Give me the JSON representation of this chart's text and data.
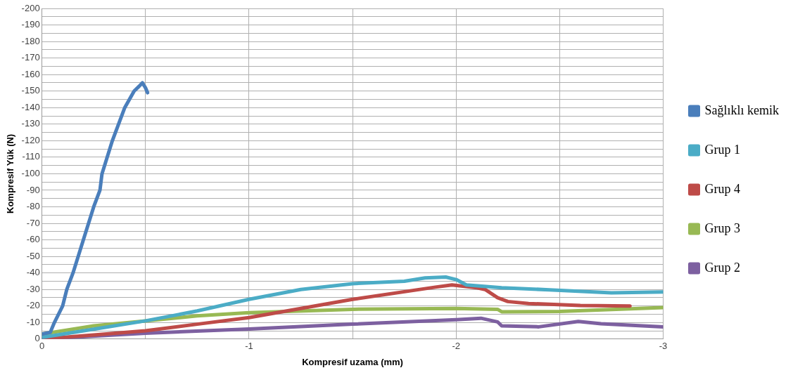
{
  "chart_data": {
    "type": "line",
    "xlabel": "Kompresif uzama (mm)",
    "ylabel": "Kompresif Yük (N)",
    "xlim": [
      0,
      -3
    ],
    "ylim": [
      0,
      -200
    ],
    "xticks": [
      0,
      {
        "value": -0.5,
        "label": null
      },
      -1,
      {
        "value": -1.5,
        "label": null
      },
      -2,
      {
        "value": -2.5,
        "label": null
      },
      -3
    ],
    "yticks": [
      0,
      {
        "value": -5,
        "label": null
      },
      -10,
      {
        "value": -15,
        "label": null
      },
      -20,
      {
        "value": -25,
        "label": null
      },
      -30,
      {
        "value": -35,
        "label": null
      },
      -40,
      {
        "value": -45,
        "label": null
      },
      -50,
      {
        "value": -55,
        "label": null
      },
      -60,
      {
        "value": -65,
        "label": null
      },
      -70,
      {
        "value": -75,
        "label": null
      },
      -80,
      {
        "value": -85,
        "label": null
      },
      -90,
      {
        "value": -95,
        "label": null
      },
      -100,
      {
        "value": -105,
        "label": null
      },
      -110,
      {
        "value": -115,
        "label": null
      },
      -120,
      {
        "value": -125,
        "label": null
      },
      -130,
      {
        "value": -135,
        "label": null
      },
      -140,
      {
        "value": -145,
        "label": null
      },
      -150,
      {
        "value": -155,
        "label": null
      },
      -160,
      {
        "value": -165,
        "label": null
      },
      -170,
      {
        "value": -175,
        "label": null
      },
      -180,
      {
        "value": -185,
        "label": null
      },
      -190,
      {
        "value": -195,
        "label": null
      },
      -200
    ],
    "grid": true,
    "legend": "right",
    "marker": "none",
    "line_style": "solid",
    "series": [
      {
        "name": "Sağlıklı kemik",
        "color": "#4a7ebb",
        "x": [
          0,
          -0.04,
          -0.06,
          -0.1,
          -0.12,
          -0.15,
          -0.2,
          -0.25,
          -0.28,
          -0.29,
          -0.34,
          -0.4,
          -0.445,
          -0.47,
          -0.485,
          -0.5,
          -0.51
        ],
        "values": [
          -3,
          -4,
          -10,
          -20,
          -30,
          -40,
          -60,
          -80,
          -90,
          -100,
          -120,
          -140,
          -150,
          -153,
          -155,
          -152,
          -149
        ]
      },
      {
        "name": "Grup 1",
        "color": "#4bacc6",
        "x": [
          0,
          -0.25,
          -0.5,
          -0.75,
          -1,
          -1.25,
          -1.5,
          -1.75,
          -1.85,
          -1.95,
          -2,
          -2.05,
          -2.22,
          -2.45,
          -2.75,
          -3
        ],
        "values": [
          -1,
          -6,
          -11,
          -17,
          -24,
          -30,
          -33.5,
          -35,
          -37,
          -37.5,
          -36,
          -32.7,
          -31,
          -29.8,
          -28,
          -28.5
        ]
      },
      {
        "name": "Grup 4",
        "color": "#be4b48",
        "x": [
          0,
          -0.25,
          -0.5,
          -0.75,
          -1,
          -1.5,
          -1.9,
          -1.98,
          -2.1,
          -2.14,
          -2.2,
          -2.25,
          -2.35,
          -2.6,
          -2.84
        ],
        "values": [
          0,
          -2.5,
          -5,
          -9,
          -13,
          -24,
          -31.4,
          -32.7,
          -31,
          -30,
          -25,
          -22.7,
          -21.5,
          -20.3,
          -20
        ]
      },
      {
        "name": "Grup 3",
        "color": "#98b954",
        "x": [
          0,
          -0.25,
          -0.5,
          -0.75,
          -1,
          -1.5,
          -2,
          -2.2,
          -2.22,
          -2.5,
          -3
        ],
        "values": [
          -3,
          -8,
          -11,
          -14,
          -16,
          -18,
          -18.5,
          -18,
          -16.5,
          -16.7,
          -19
        ]
      },
      {
        "name": "Grup 2",
        "color": "#7d60a0",
        "x": [
          0,
          -0.5,
          -1,
          -1.5,
          -2,
          -2.12,
          -2.2,
          -2.22,
          -2.4,
          -2.59,
          -2.7,
          -3
        ],
        "values": [
          0,
          -3.5,
          -6.1,
          -9,
          -11.7,
          -12.6,
          -10.4,
          -8,
          -7.4,
          -10.6,
          -9.3,
          -7.4
        ]
      }
    ]
  }
}
